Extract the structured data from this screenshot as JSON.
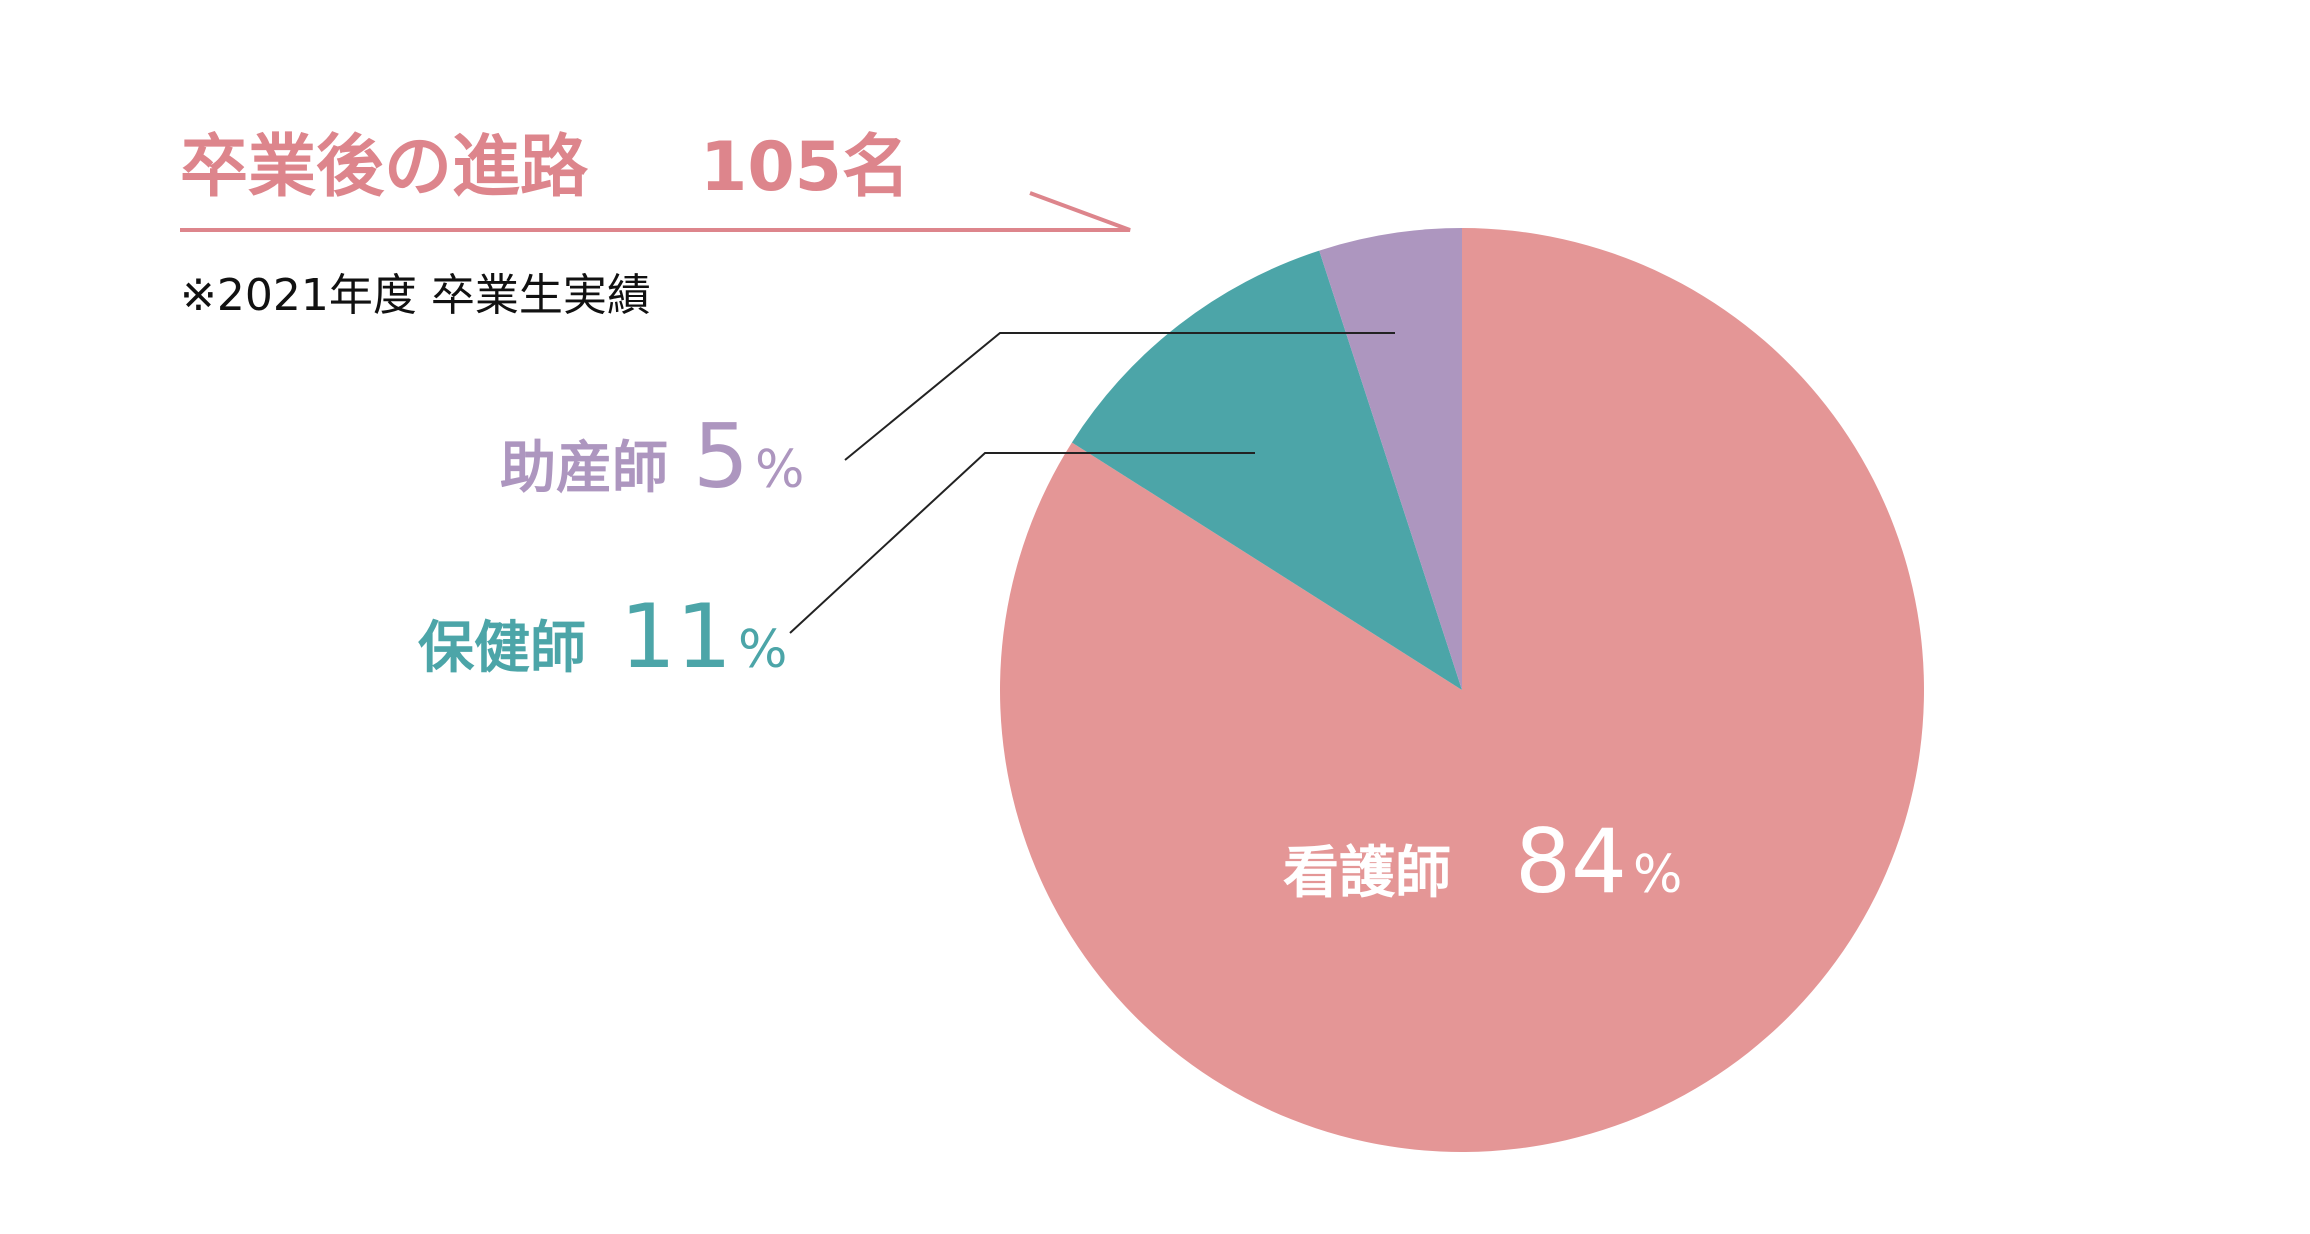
{
  "chart_data": {
    "type": "pie",
    "title": "卒業後の進路",
    "total": "105名",
    "note": "※2021年度 卒業生実績",
    "slices": [
      {
        "label": "看護師",
        "value": 84,
        "color": "#E49696"
      },
      {
        "label": "保健師",
        "value": 11,
        "color": "#4CA5A8"
      },
      {
        "label": "助産師",
        "value": 5,
        "color": "#AD96BF"
      }
    ],
    "unit": "%",
    "colors": {
      "title": "#DD858C",
      "note": "#111111",
      "pie_label_inside": "#ffffff"
    }
  }
}
